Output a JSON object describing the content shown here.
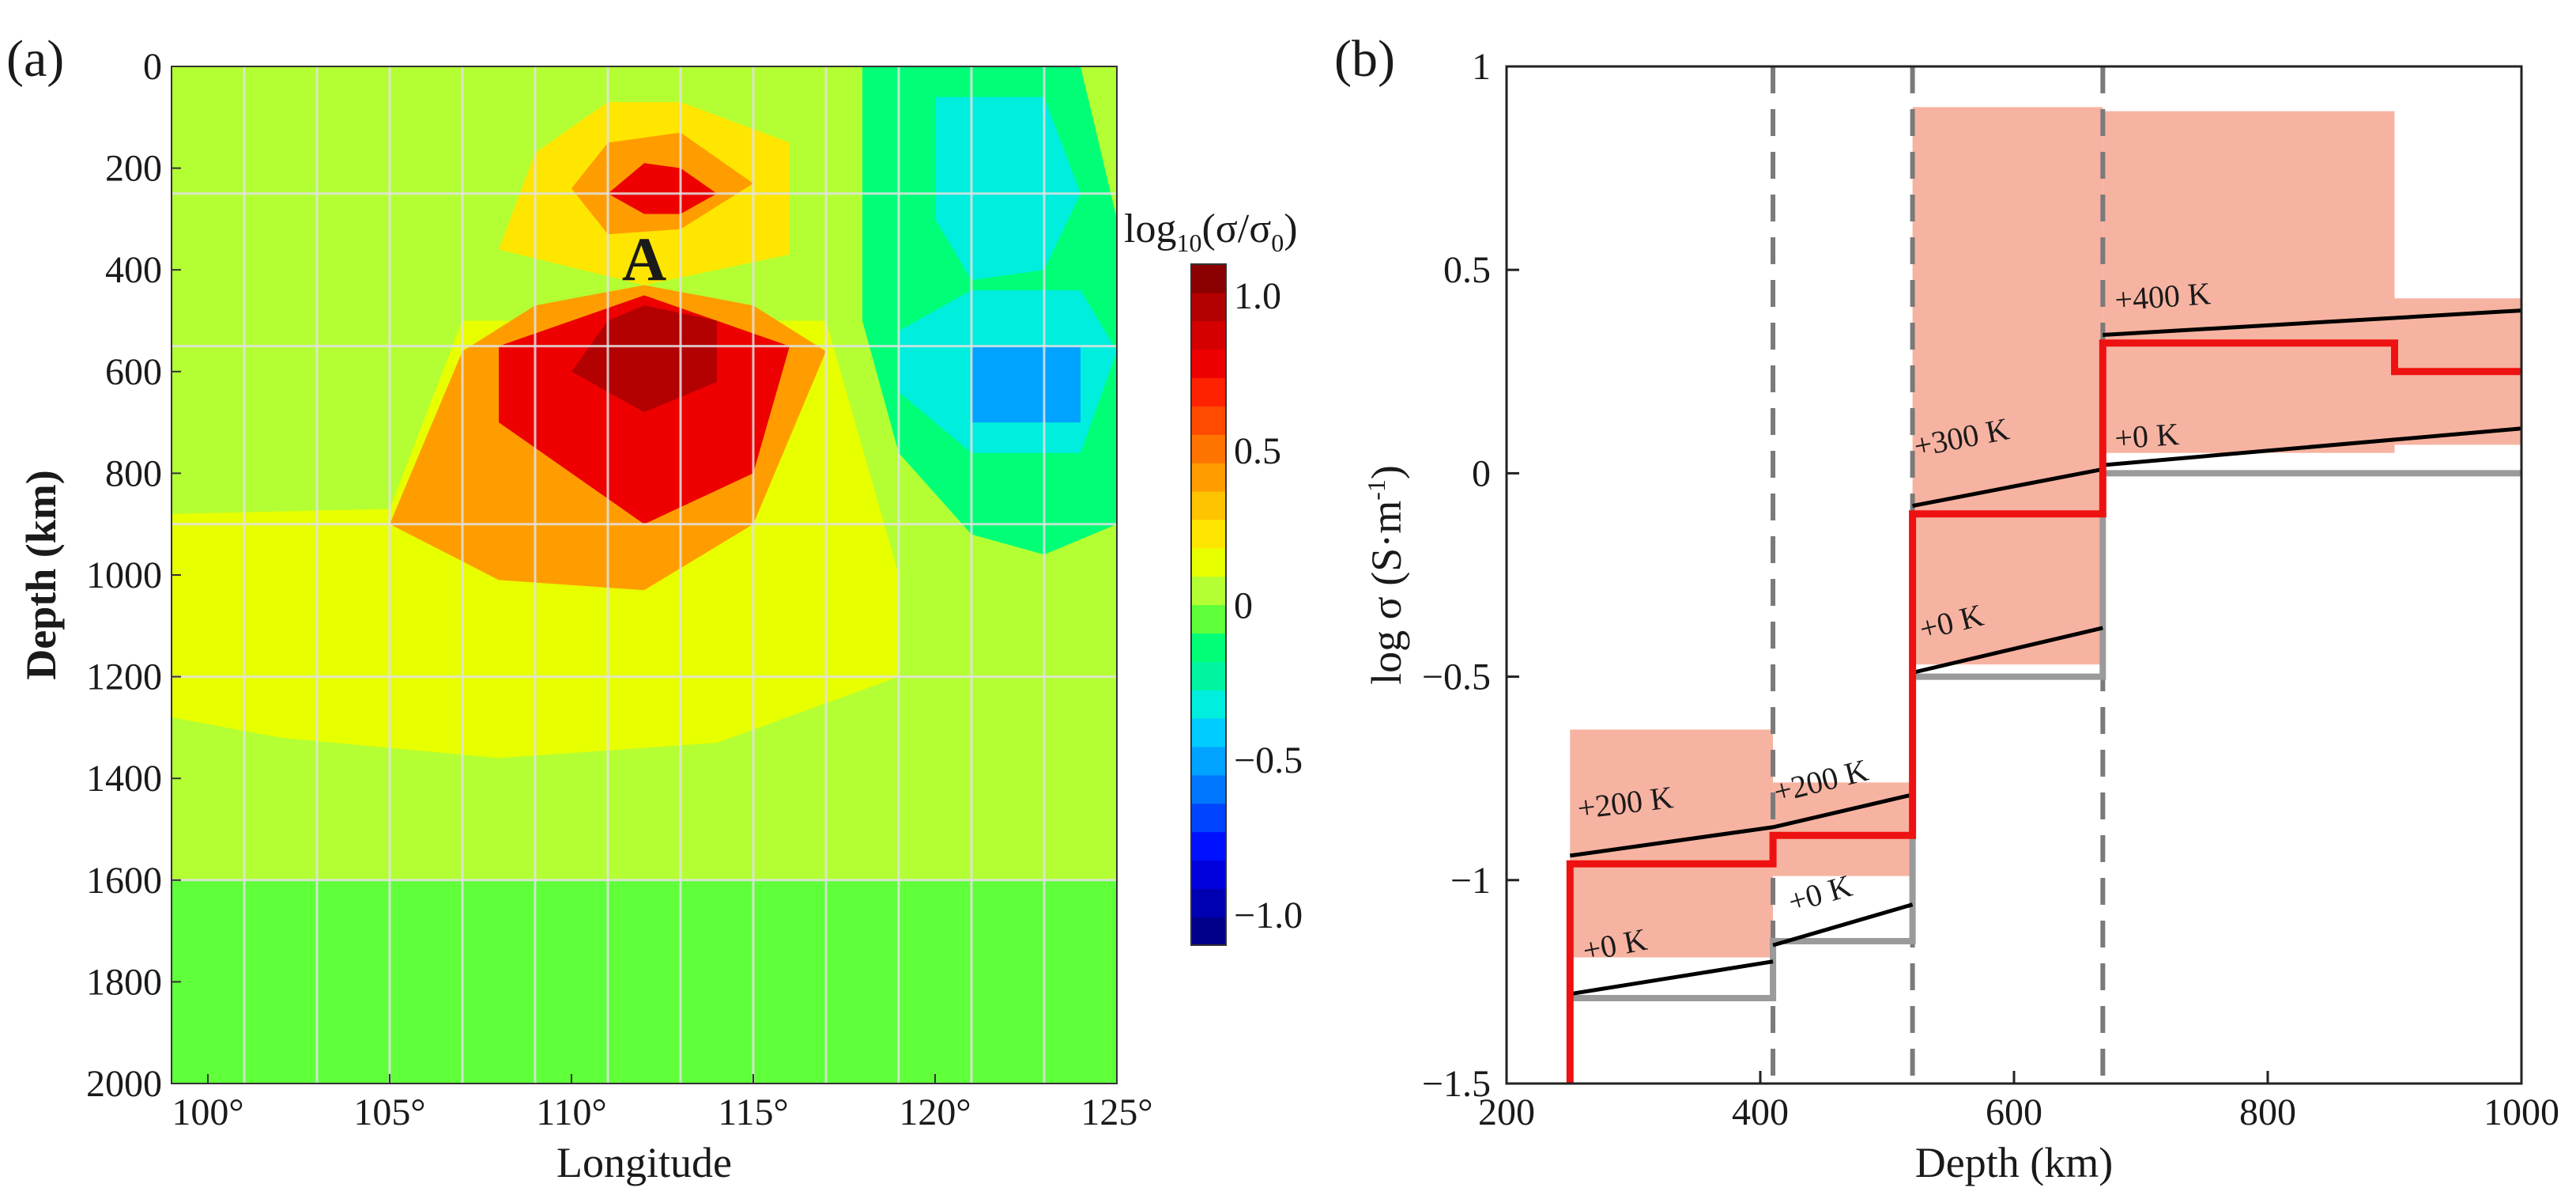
{
  "figure": {
    "panel_a_label": "(a)",
    "panel_b_label": "(b)"
  },
  "chart_data": [
    {
      "type": "heatmap",
      "panel": "(a)",
      "title": "",
      "xlabel": "Longitude",
      "ylabel": "Depth (km)",
      "xlim": [
        99,
        125
      ],
      "ylim": [
        2000,
        0
      ],
      "xticks": [
        100,
        105,
        110,
        115,
        120,
        125
      ],
      "xtick_labels": [
        "100°",
        "105°",
        "110°",
        "115°",
        "120°",
        "125°"
      ],
      "yticks": [
        0,
        200,
        400,
        600,
        800,
        1000,
        1200,
        1400,
        1600,
        1800,
        2000
      ],
      "ytick_labels": [
        "0",
        "200",
        "400",
        "600",
        "800",
        "1000",
        "1200",
        "1400",
        "1600",
        "1800",
        "2000"
      ],
      "grid": true,
      "grid_x": [
        101,
        103,
        105,
        107,
        109,
        111,
        113,
        115,
        117,
        119,
        121,
        123
      ],
      "grid_y": [
        250,
        550,
        900,
        1200,
        1600
      ],
      "background_level": 0.05,
      "annotation": {
        "text": "A",
        "x": 112,
        "y": 420
      },
      "colorbar": {
        "title": "log10(σ/σ0)",
        "title_main": "log",
        "title_sub": "10",
        "title_paren_open": "(σ/σ",
        "title_sub2": "0",
        "title_paren_close": ")",
        "vmin": -1.1,
        "vmax": 1.1,
        "ticks": [
          1.0,
          0.5,
          0,
          -0.5,
          -1.0
        ],
        "tick_labels": [
          "1.0",
          "0.5",
          "0",
          "−0.5",
          "−1.0"
        ],
        "colors": [
          "#00008b",
          "#0000b3",
          "#0000dd",
          "#0011ff",
          "#0044ff",
          "#0077ff",
          "#00a3ff",
          "#00ccff",
          "#00eedd",
          "#00f5a0",
          "#00ff77",
          "#5fff3a",
          "#b3ff33",
          "#e8ff00",
          "#ffe600",
          "#ffc400",
          "#ff9d00",
          "#ff7300",
          "#ff4a00",
          "#ff2200",
          "#ee0000",
          "#d40000",
          "#b30000",
          "#8b0000"
        ]
      },
      "anomalies": [
        {
          "name": "band-1600",
          "polygon": [
            [
              99,
              1600
            ],
            [
              125,
              1600
            ],
            [
              125,
              2000
            ],
            [
              99,
              2000
            ]
          ],
          "level": -0.05
        },
        {
          "name": "green-left",
          "polygon": [
            [
              99,
              0
            ],
            [
              105,
              0
            ],
            [
              103,
              600
            ],
            [
              101,
              700
            ],
            [
              99,
              680
            ]
          ],
          "level": 0.08
        },
        {
          "name": "broad-positive",
          "polygon": [
            [
              99,
              880
            ],
            [
              105,
              870
            ],
            [
              107,
              500
            ],
            [
              117,
              500
            ],
            [
              119,
              1000
            ],
            [
              119,
              1200
            ],
            [
              114,
              1330
            ],
            [
              108,
              1360
            ],
            [
              102,
              1320
            ],
            [
              99,
              1280
            ]
          ],
          "level": 0.18
        },
        {
          "name": "shallow-positive",
          "polygon": [
            [
              109,
              170
            ],
            [
              111,
              70
            ],
            [
              113,
              70
            ],
            [
              116,
              150
            ],
            [
              116,
              370
            ],
            [
              112,
              430
            ],
            [
              108,
              360
            ]
          ],
          "level": 0.25
        },
        {
          "name": "shallow-orange",
          "polygon": [
            [
              110,
              240
            ],
            [
              111,
              150
            ],
            [
              113,
              130
            ],
            [
              115,
              230
            ],
            [
              113,
              320
            ],
            [
              111,
              330
            ]
          ],
          "level": 0.45
        },
        {
          "name": "shallow-core",
          "polygon": [
            [
              111,
              250
            ],
            [
              112,
              190
            ],
            [
              113,
              200
            ],
            [
              114,
              250
            ],
            [
              113,
              290
            ],
            [
              112,
              290
            ]
          ],
          "level": 0.75
        },
        {
          "name": "deep-orange",
          "polygon": [
            [
              105,
              900
            ],
            [
              107,
              560
            ],
            [
              109,
              470
            ],
            [
              112,
              430
            ],
            [
              115,
              470
            ],
            [
              117,
              560
            ],
            [
              115,
              900
            ],
            [
              112,
              1030
            ],
            [
              108,
              1010
            ]
          ],
          "level": 0.45
        },
        {
          "name": "deep-red",
          "polygon": [
            [
              108,
              700
            ],
            [
              108,
              550
            ],
            [
              112,
              450
            ],
            [
              116,
              550
            ],
            [
              115,
              800
            ],
            [
              112,
              900
            ]
          ],
          "level": 0.8
        },
        {
          "name": "deep-core",
          "polygon": [
            [
              110,
              600
            ],
            [
              111,
              500
            ],
            [
              112,
              470
            ],
            [
              114,
              500
            ],
            [
              114,
              620
            ],
            [
              112,
              680
            ]
          ],
          "level": 1.0
        },
        {
          "name": "negative-outer",
          "polygon": [
            [
              118,
              0
            ],
            [
              124,
              0
            ],
            [
              125,
              300
            ],
            [
              125,
              900
            ],
            [
              123,
              960
            ],
            [
              121,
              920
            ],
            [
              119,
              760
            ],
            [
              118,
              500
            ]
          ],
          "level": -0.18
        },
        {
          "name": "negative-upper",
          "polygon": [
            [
              120,
              60
            ],
            [
              123,
              60
            ],
            [
              124,
              250
            ],
            [
              123,
              400
            ],
            [
              121,
              420
            ],
            [
              120,
              300
            ]
          ],
          "level": -0.28
        },
        {
          "name": "negative-mid",
          "polygon": [
            [
              119,
              520
            ],
            [
              121,
              440
            ],
            [
              124,
              440
            ],
            [
              125,
              560
            ],
            [
              124,
              760
            ],
            [
              121,
              760
            ],
            [
              119,
              640
            ]
          ],
          "level": -0.33
        },
        {
          "name": "negative-core",
          "polygon": [
            [
              121,
              550
            ],
            [
              124,
              550
            ],
            [
              124,
              700
            ],
            [
              121,
              700
            ]
          ],
          "level": -0.55
        }
      ]
    },
    {
      "type": "line",
      "panel": "(b)",
      "title": "",
      "xlabel": "Depth (km)",
      "ylabel": "log σ (S·m⁻¹)",
      "ylabel_main": "log σ (S·m",
      "ylabel_sup": "-1",
      "ylabel_close": ")",
      "xlim": [
        200,
        1000
      ],
      "ylim": [
        -1.5,
        1
      ],
      "xticks": [
        200,
        400,
        600,
        800,
        1000
      ],
      "xtick_labels": [
        "200",
        "400",
        "600",
        "800",
        "1000"
      ],
      "yticks": [
        1,
        0.5,
        0,
        -0.5,
        -1,
        -1.5
      ],
      "ytick_labels": [
        "1",
        "0.5",
        "0",
        "−0.5",
        "−1",
        "−1.5"
      ],
      "grid": false,
      "vertical_dashed_lines": [
        410,
        520,
        670
      ],
      "uncertainty_bands": [
        {
          "x": [
            250,
            410
          ],
          "y": [
            -1.19,
            -0.63
          ]
        },
        {
          "x": [
            410,
            520
          ],
          "y": [
            -0.99,
            -0.76
          ]
        },
        {
          "x": [
            520,
            670
          ],
          "y": [
            -0.47,
            0.9
          ]
        },
        {
          "x": [
            670,
            900
          ],
          "y": [
            0.05,
            0.89
          ]
        },
        {
          "x": [
            900,
            1000
          ],
          "y": [
            0.07,
            0.43
          ]
        }
      ],
      "series": [
        {
          "name": "gray-reference",
          "color": "#9a9a9a",
          "points": [
            [
              250,
              -1.29
            ],
            [
              410,
              -1.29
            ],
            [
              410,
              -1.15
            ],
            [
              520,
              -1.15
            ],
            [
              520,
              -0.5
            ],
            [
              670,
              -0.5
            ],
            [
              670,
              0
            ],
            [
              1000,
              0
            ]
          ]
        },
        {
          "name": "black-+0K",
          "color": "#000000",
          "segments": [
            [
              [
                250,
                -1.28
              ],
              [
                410,
                -1.2
              ]
            ],
            [
              [
                410,
                -1.16
              ],
              [
                520,
                -1.06
              ]
            ],
            [
              [
                520,
                -0.49
              ],
              [
                670,
                -0.38
              ]
            ],
            [
              [
                670,
                0.02
              ],
              [
                1000,
                0.11
              ]
            ]
          ]
        },
        {
          "name": "black-warm",
          "color": "#000000",
          "segments": [
            [
              [
                250,
                -0.94
              ],
              [
                410,
                -0.87
              ]
            ],
            [
              [
                410,
                -0.87
              ],
              [
                520,
                -0.79
              ]
            ],
            [
              [
                520,
                -0.08
              ],
              [
                670,
                0.01
              ]
            ],
            [
              [
                670,
                0.34
              ],
              [
                1000,
                0.4
              ]
            ]
          ]
        },
        {
          "name": "red-model",
          "color": "#ee1111",
          "points": [
            [
              250,
              -1.5
            ],
            [
              250,
              -0.96
            ],
            [
              410,
              -0.96
            ],
            [
              410,
              -0.89
            ],
            [
              520,
              -0.89
            ],
            [
              520,
              -0.1
            ],
            [
              670,
              -0.1
            ],
            [
              670,
              0.32
            ],
            [
              900,
              0.32
            ],
            [
              900,
              0.25
            ],
            [
              1000,
              0.25
            ]
          ]
        }
      ],
      "annotations": [
        {
          "text": "+200 K",
          "x": 257,
          "y": -0.85,
          "angle": -7
        },
        {
          "text": "+0 K",
          "x": 262,
          "y": -1.2,
          "angle": -11
        },
        {
          "text": "+200 K",
          "x": 413,
          "y": -0.81,
          "angle": -14
        },
        {
          "text": "+0 K",
          "x": 425,
          "y": -1.08,
          "angle": -16
        },
        {
          "text": "+300 K",
          "x": 523,
          "y": 0.04,
          "angle": -11
        },
        {
          "text": "+0 K",
          "x": 528,
          "y": -0.41,
          "angle": -14
        },
        {
          "text": "+400 K",
          "x": 680,
          "y": 0.4,
          "angle": -4
        },
        {
          "text": "+0 K",
          "x": 680,
          "y": 0.06,
          "angle": -4
        }
      ]
    }
  ]
}
